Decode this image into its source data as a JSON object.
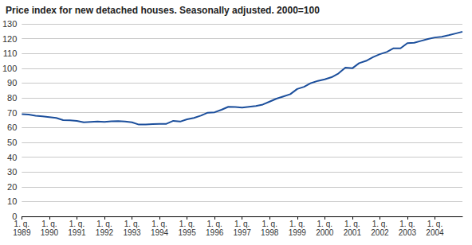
{
  "chart_data": {
    "type": "line",
    "title": "Price index for new detached houses. Seasonally adjusted. 2000=100",
    "categories": [
      "1. q.\n1989",
      null,
      null,
      null,
      "1. q.\n1990",
      null,
      null,
      null,
      "1. q.\n1991",
      null,
      null,
      null,
      "1. q.\n1992",
      null,
      null,
      null,
      "1. q.\n1993",
      null,
      null,
      null,
      "1. q.\n1994",
      null,
      null,
      null,
      "1. q.\n1995",
      null,
      null,
      null,
      "1. q.\n1996",
      null,
      null,
      null,
      "1. q.\n1997",
      null,
      null,
      null,
      "1. q.\n1998",
      null,
      null,
      null,
      "1. q.\n1999",
      null,
      null,
      null,
      "1. q.\n2000",
      null,
      null,
      null,
      "1. q.\n2001",
      null,
      null,
      null,
      "1. q.\n2002",
      null,
      null,
      null,
      "1. q.\n2003",
      null,
      null,
      null,
      "1. q.\n2004",
      null,
      null,
      null,
      null
    ],
    "values": [
      69,
      68.8,
      68,
      67.5,
      67,
      66.5,
      65,
      64.8,
      64.5,
      63.5,
      63.8,
      64,
      63.8,
      64.2,
      64.3,
      64,
      63.5,
      62,
      62,
      62.3,
      62.5,
      62.5,
      64.5,
      64,
      65.5,
      66.5,
      68,
      70,
      70.3,
      72,
      74,
      73.8,
      73.5,
      74,
      74.5,
      75.5,
      77.5,
      79.5,
      81,
      82.5,
      86,
      87.5,
      90,
      91.5,
      92.5,
      94,
      96.5,
      100.5,
      100,
      103.5,
      105,
      107.5,
      109.5,
      111,
      113.5,
      113.5,
      117,
      117.2,
      118.5,
      119.8,
      120.8,
      121.3,
      122.3,
      123.5,
      124.7
    ],
    "color": "#1c4f9c",
    "ylim": [
      0,
      130
    ],
    "yticks": [
      0,
      10,
      20,
      30,
      40,
      50,
      60,
      70,
      80,
      90,
      100,
      110,
      120,
      130
    ],
    "grid": true
  }
}
